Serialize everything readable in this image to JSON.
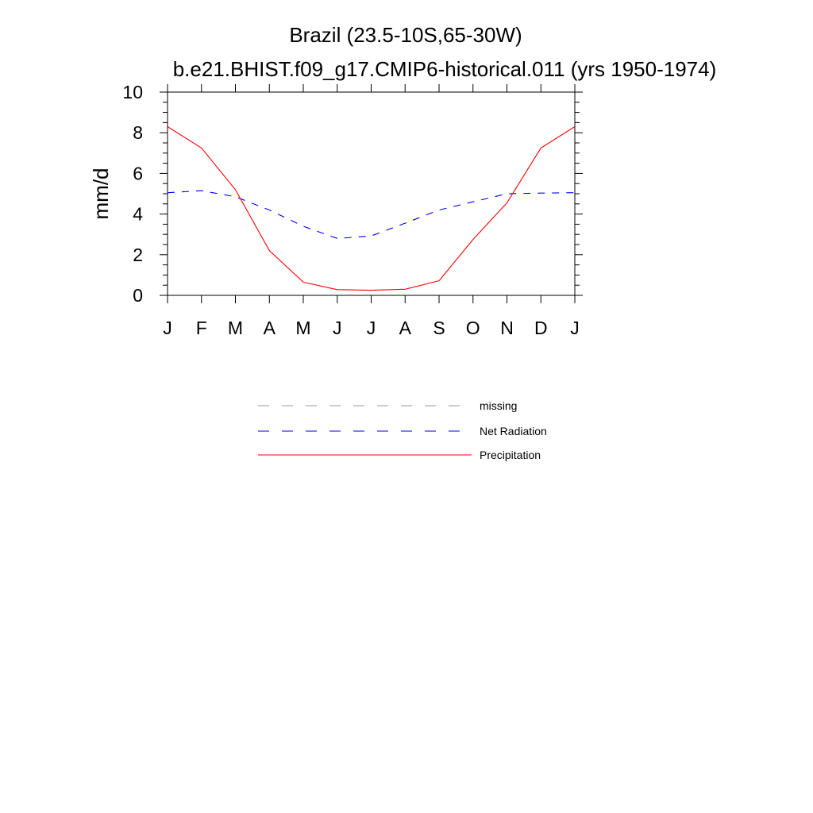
{
  "chart_data": {
    "type": "line",
    "title": "Brazil (23.5-10S,65-30W)",
    "subtitle": "b.e21.BHIST.f09_g17.CMIP6-historical.011 (yrs 1950-1974)",
    "xlabel": "",
    "ylabel": "mm/d",
    "categories": [
      "J",
      "F",
      "M",
      "A",
      "M",
      "J",
      "J",
      "A",
      "S",
      "O",
      "N",
      "D",
      "J"
    ],
    "ylim": [
      0,
      10
    ],
    "yticks": [
      "0",
      "2",
      "4",
      "6",
      "8",
      "10"
    ],
    "yticks_values": [
      0,
      2,
      4,
      6,
      8,
      10
    ],
    "grid": false,
    "legend_position": "bottom-center",
    "series": [
      {
        "name": "Net Radiation",
        "color": "#0000ff",
        "style": "dashed",
        "values": [
          5.05,
          5.15,
          4.85,
          4.2,
          3.4,
          2.8,
          2.92,
          3.55,
          4.2,
          4.6,
          5.0,
          5.03,
          5.05
        ]
      },
      {
        "name": "Precipitation",
        "color": "#ff0000",
        "style": "solid",
        "values": [
          8.3,
          7.25,
          5.2,
          2.2,
          0.65,
          0.28,
          0.25,
          0.3,
          0.72,
          2.75,
          4.55,
          7.25,
          8.3
        ]
      }
    ],
    "legend": [
      {
        "label": "missing",
        "color": "#999999",
        "style": "dashed"
      },
      {
        "label": "Net Radiation",
        "color": "#0000ff",
        "style": "dashed"
      },
      {
        "label": "Precipitation",
        "color": "#ff0000",
        "style": "solid"
      }
    ]
  }
}
